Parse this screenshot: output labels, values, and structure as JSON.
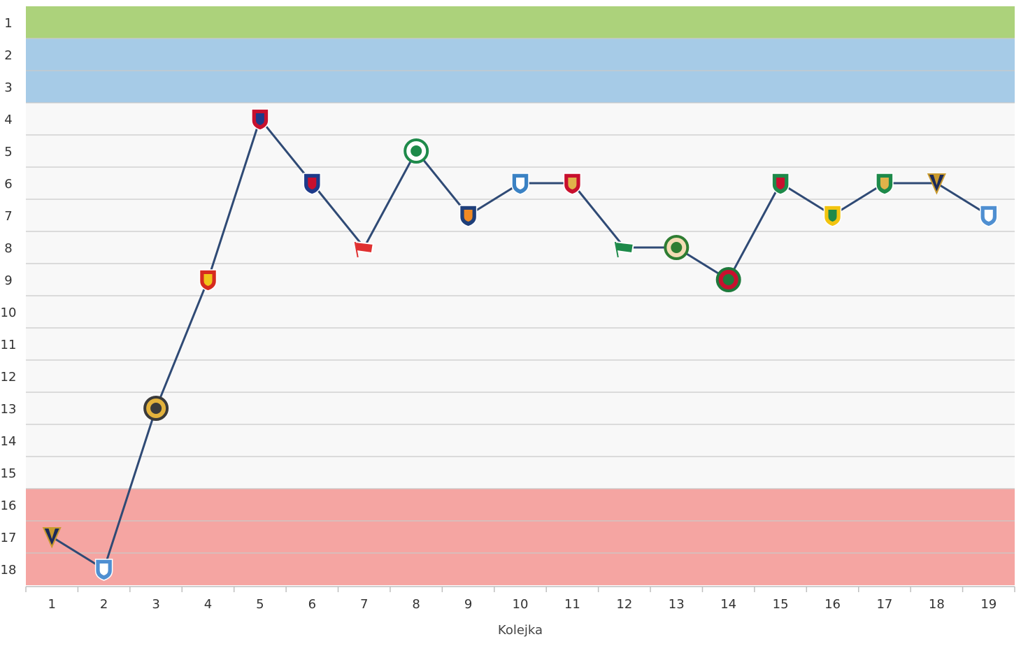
{
  "chart_data": {
    "type": "line",
    "xlabel": "Kolejka",
    "ylabel": "",
    "x": [
      1,
      2,
      3,
      4,
      5,
      6,
      7,
      8,
      9,
      10,
      11,
      12,
      13,
      14,
      15,
      16,
      17,
      18,
      19
    ],
    "series": [
      {
        "values": [
          17,
          18,
          13,
          9,
          4,
          6,
          8,
          5,
          7,
          6,
          6,
          8,
          8,
          9,
          6,
          7,
          6,
          6,
          7
        ],
        "color": "#2f4a75",
        "markers": [
          {
            "icon": "pogon-szczecin-crest-icon",
            "color": "#1b2a5a",
            "accent": "#c99a2e"
          },
          {
            "icon": "lech-poznan-crest-icon",
            "color": "#4f8fd1",
            "accent": "#ffffff"
          },
          {
            "icon": "gear-crest-icon",
            "color": "#3a3a3a",
            "accent": "#e3b23c"
          },
          {
            "icon": "jagiellonia-crest-icon",
            "color": "#d62b1f",
            "accent": "#f0c419"
          },
          {
            "icon": "rakow-crest-icon",
            "color": "#c8102e",
            "accent": "#1e3a8a"
          },
          {
            "icon": "piast-crest-icon",
            "color": "#1e3a8a",
            "accent": "#c8102e"
          },
          {
            "icon": "cracovia-flag-icon",
            "color": "#e03131",
            "accent": "#ffffff"
          },
          {
            "icon": "warta-crest-icon",
            "color": "#1e8a4a",
            "accent": "#ffffff"
          },
          {
            "icon": "stal-crest-icon",
            "color": "#1f3f7a",
            "accent": "#f08a24"
          },
          {
            "icon": "wisla-plock-crest-icon",
            "color": "#3b82c4",
            "accent": "#ffffff"
          },
          {
            "icon": "widzew-crest-icon",
            "color": "#c8102e",
            "accent": "#e0b34a"
          },
          {
            "icon": "lechia-flag-icon",
            "color": "#1e8a4a",
            "accent": "#ffffff"
          },
          {
            "icon": "radomiak-crest-icon",
            "color": "#2e7d32",
            "accent": "#f3dcb4"
          },
          {
            "icon": "zaglebie-crest-icon",
            "color": "#1e7a3c",
            "accent": "#c8102e"
          },
          {
            "icon": "legia-crest-icon",
            "color": "#1e8a4a",
            "accent": "#c8102e"
          },
          {
            "icon": "gks-crest-icon",
            "color": "#f2c40f",
            "accent": "#1e8a4a"
          },
          {
            "icon": "slask-crest-icon",
            "color": "#1e8a4a",
            "accent": "#e0b34a"
          },
          {
            "icon": "pogon-szczecin-crest-icon",
            "color": "#1b2a5a",
            "accent": "#c99a2e"
          },
          {
            "icon": "lech-poznan-crest-icon",
            "color": "#4f8fd1",
            "accent": "#ffffff"
          }
        ]
      }
    ],
    "ylim": [
      1,
      18
    ],
    "y_inverted": true,
    "xlim": [
      1,
      19
    ],
    "y_ticks": [
      "1",
      "2",
      "3",
      "4",
      "5",
      "6",
      "7",
      "8",
      "9",
      "10",
      "11",
      "12",
      "13",
      "14",
      "15",
      "16",
      "17",
      "18"
    ],
    "x_ticks": [
      "1",
      "2",
      "3",
      "4",
      "5",
      "6",
      "7",
      "8",
      "9",
      "10",
      "11",
      "12",
      "13",
      "14",
      "15",
      "16",
      "17",
      "18",
      "19"
    ],
    "grid": true,
    "bands": [
      {
        "from": 1,
        "to": 1,
        "color": "#acd27b"
      },
      {
        "from": 2,
        "to": 3,
        "color": "#a6cbe7"
      },
      {
        "from": 4,
        "to": 15,
        "color": "#f8f8f8"
      },
      {
        "from": 16,
        "to": 18,
        "color": "#f5a5a2"
      }
    ]
  }
}
